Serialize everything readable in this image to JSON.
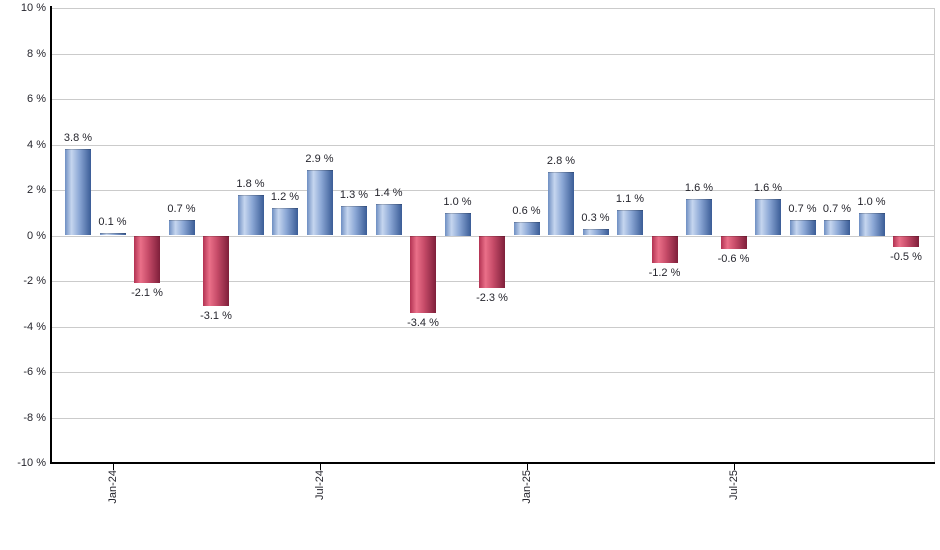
{
  "chart_data": {
    "type": "bar",
    "title": "",
    "xlabel": "",
    "ylabel": "",
    "ylim": [
      -10,
      10
    ],
    "y_tick_step": 2,
    "grid": true,
    "legend": "none",
    "value_suffix": " %",
    "y_tick_labels": [
      "10 %",
      "8 %",
      "6 %",
      "4 %",
      "2 %",
      "0 %",
      "-2 %",
      "-4 %",
      "-6 %",
      "-8 %",
      "-10 %"
    ],
    "x_tick_labels": [
      {
        "index": 1,
        "label": "Jan-24"
      },
      {
        "index": 7,
        "label": "Jul-24"
      },
      {
        "index": 13,
        "label": "Jan-25"
      },
      {
        "index": 19,
        "label": "Jul-25"
      }
    ],
    "values": [
      3.8,
      0.1,
      -2.1,
      0.7,
      -3.1,
      1.8,
      1.2,
      2.9,
      1.3,
      1.4,
      -3.4,
      1.0,
      -2.3,
      0.6,
      2.8,
      0.3,
      1.1,
      -1.2,
      1.6,
      -0.6,
      1.6,
      0.7,
      0.7,
      1.0,
      -0.5
    ],
    "bar_labels": [
      "3.8 %",
      "0.1 %",
      "-2.1 %",
      "0.7 %",
      "-3.1 %",
      "1.8 %",
      "1.2 %",
      "2.9 %",
      "1.3 %",
      "1.4 %",
      "-3.4 %",
      "1.0 %",
      "-2.3 %",
      "0.6 %",
      "2.8 %",
      "0.3 %",
      "1.1 %",
      "-1.2 %",
      "1.6 %",
      "-0.6 %",
      "1.6 %",
      "0.7 %",
      "0.7 %",
      "1.0 %",
      "-0.5 %"
    ]
  },
  "colors": {
    "positive_edge": "#6e8ec2",
    "positive_light": "#c6d6ef",
    "positive_mid": "#8ba7d5",
    "positive_dark": "#3a5c96",
    "negative_edge": "#b23252",
    "negative_light": "#ea7089",
    "negative_mid": "#c64b68",
    "negative_dark": "#7e1f3a",
    "gridline": "#cbcbcb",
    "axis": "#000000",
    "text": "#26262e",
    "background": "#ffffff"
  }
}
